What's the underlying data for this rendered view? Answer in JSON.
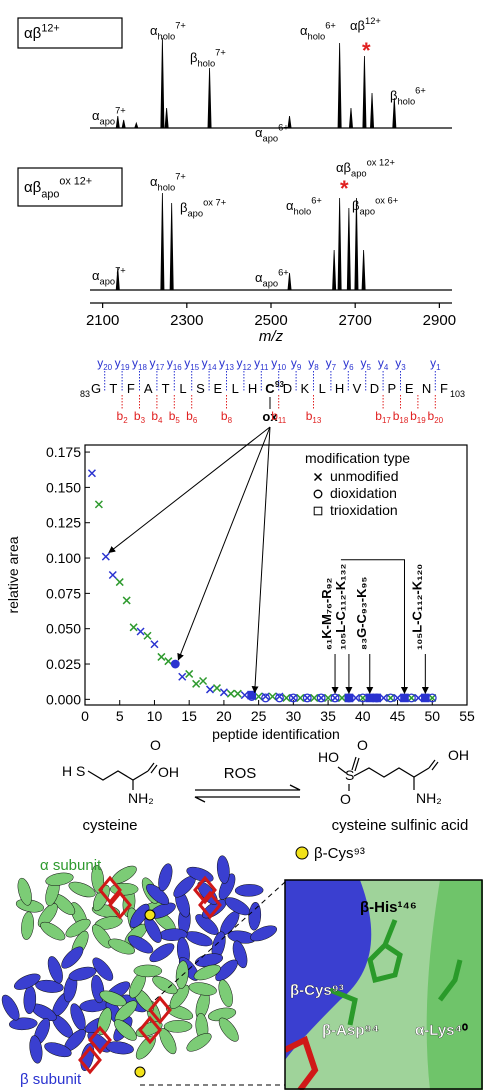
{
  "chart_data": [
    {
      "type": "spectrum",
      "label": {
        "base": "αβ",
        "sup": "12+"
      },
      "x": [
        2136,
        2150,
        2180,
        2242,
        2252,
        2354,
        2544,
        2663,
        2690,
        2722,
        2740,
        2793
      ],
      "values": [
        12,
        8,
        5,
        90,
        20,
        60,
        12,
        85,
        20,
        72,
        35,
        30
      ],
      "xlim": [
        2070,
        2930
      ],
      "annotations": [
        {
          "base": "α",
          "sub": "apo",
          "sup": "7+"
        },
        {
          "base": "α",
          "sub": "holo",
          "sup": "7+"
        },
        {
          "base": "β",
          "sub": "holo",
          "sup": "7+"
        },
        {
          "base": "α",
          "sub": "apo",
          "sup": "6+"
        },
        {
          "base": "α",
          "sub": "holo",
          "sup": "6+"
        },
        {
          "base": "αβ",
          "sup": "12+"
        },
        {
          "base": "β",
          "sub": "holo",
          "sup": "6+"
        }
      ],
      "marker": "*",
      "marker_color": "#e02020"
    },
    {
      "type": "spectrum",
      "label": {
        "base": "αβ",
        "sub": "apo",
        "sup": "ox 12+"
      },
      "x": [
        2136,
        2242,
        2264,
        2544,
        2650,
        2663,
        2685,
        2703,
        2720
      ],
      "values": [
        22,
        97,
        87,
        17,
        40,
        92,
        82,
        92,
        40
      ],
      "xlim": [
        2070,
        2930
      ],
      "xticks": [
        2100,
        2300,
        2500,
        2700,
        2900
      ],
      "xlabel": "m/z",
      "annotations": [
        {
          "base": "α",
          "sub": "apo",
          "sup": "7+"
        },
        {
          "base": "α",
          "sub": "holo",
          "sup": "7+"
        },
        {
          "base": "β",
          "sub": "apo",
          "sup": "ox 7+"
        },
        {
          "base": "α",
          "sub": "apo",
          "sup": "6+"
        },
        {
          "base": "α",
          "sub": "holo",
          "sup": "6+"
        },
        {
          "base": "αβ",
          "sub": "apo",
          "sup": "ox 12+"
        },
        {
          "base": "β",
          "sub": "apo",
          "sup": "ox 6+"
        }
      ],
      "marker": "*",
      "marker_color": "#e02020"
    },
    {
      "type": "scatter",
      "xlabel": "peptide identification",
      "ylabel": "relative area",
      "xlim": [
        0,
        55
      ],
      "xticks": [
        0,
        5,
        10,
        15,
        20,
        25,
        30,
        35,
        40,
        45,
        50,
        55
      ],
      "ylim": [
        -0.004,
        0.18
      ],
      "yticks": [
        {
          "value": 0,
          "label": "0.000"
        },
        {
          "value": 0.025,
          "label": "0.025"
        },
        {
          "value": 0.05,
          "label": "0.050"
        },
        {
          "value": 0.075,
          "label": "0.075"
        },
        {
          "value": 0.1,
          "label": "0.100"
        },
        {
          "value": 0.125,
          "label": "0.125"
        },
        {
          "value": 0.15,
          "label": "0.150"
        },
        {
          "value": 0.175,
          "label": "0.175"
        }
      ],
      "legend_title": "modification type",
      "legend": [
        {
          "name": "unmodified",
          "marker": "x"
        },
        {
          "name": "dioxidation",
          "marker": "circle"
        },
        {
          "name": "trioxidation",
          "marker": "square"
        }
      ],
      "series": [
        {
          "marker": "x",
          "color": "#2a33d0",
          "x": [
            1,
            3,
            4,
            8,
            10,
            14,
            18,
            20,
            23,
            26,
            28,
            30,
            32,
            34,
            36,
            39,
            43,
            45,
            48
          ],
          "values": [
            0.16,
            0.101,
            0.088,
            0.048,
            0.039,
            0.016,
            0.007,
            0.005,
            0.003,
            0.002,
            0.002,
            0.001,
            0.001,
            0.001,
            0.001,
            0.001,
            0.001,
            0.001,
            0.001
          ]
        },
        {
          "marker": "x",
          "color": "#2e9a2e",
          "x": [
            2,
            5,
            6,
            7,
            9,
            11,
            12,
            15,
            16,
            17,
            19,
            21,
            22,
            25,
            27,
            29,
            31,
            33,
            35,
            37,
            40,
            44,
            47,
            50
          ],
          "values": [
            0.138,
            0.083,
            0.07,
            0.051,
            0.045,
            0.03,
            0.027,
            0.018,
            0.011,
            0.013,
            0.008,
            0.004,
            0.004,
            0.002,
            0.002,
            0.001,
            0.001,
            0.001,
            0.001,
            0.001,
            0.001,
            0.001,
            0.001,
            0.001
          ]
        },
        {
          "marker": "circle",
          "filled": true,
          "color": "#2a33d0",
          "x": [
            13
          ],
          "values": [
            0.025
          ]
        },
        {
          "marker": "circle",
          "filled": false,
          "color": "#2a33d0",
          "x": [
            24,
            26,
            28,
            30,
            32,
            34,
            36,
            38,
            40,
            42,
            44,
            47,
            50
          ],
          "values": [
            0.002,
            0.001,
            0.001,
            0.001,
            0.001,
            0.001,
            0.001,
            0.001,
            0.001,
            0.001,
            0.001,
            0.001,
            0.001
          ]
        },
        {
          "marker": "square",
          "filled": true,
          "color": "#2a33d0",
          "x": [
            24,
            38,
            41,
            42,
            46,
            49
          ],
          "values": [
            0.003,
            0.001,
            0.001,
            0.001,
            0.001,
            0.001
          ]
        }
      ],
      "peptide_labels": [
        {
          "text": "₆₁K-M₇₆-R₉₂",
          "x": [
            36
          ]
        },
        {
          "text": "₁₀₅L-C₁₁₂-K₁₃₂",
          "x": [
            38,
            46
          ]
        },
        {
          "text": "₈₃G-C₉₃-K₉₅",
          "x": [
            41
          ]
        },
        {
          "text": "₁₀₅L-C₁₁₂-K₁₂₀",
          "x": [
            49
          ]
        }
      ],
      "ox_targets": [
        3,
        13,
        24
      ]
    }
  ],
  "sequence": {
    "start": "83",
    "end": "103",
    "residues": [
      "G",
      "T",
      "F",
      "A",
      "T",
      "L",
      "S",
      "E",
      "L",
      "H",
      "C",
      "D",
      "K",
      "L",
      "H",
      "V",
      "D",
      "P",
      "E",
      "N",
      "F"
    ],
    "site_number": "93",
    "ox": "ox",
    "y_ions": [
      {
        "ion": "y",
        "n": "20"
      },
      {
        "ion": "y",
        "n": "19"
      },
      {
        "ion": "y",
        "n": "18"
      },
      {
        "ion": "y",
        "n": "17"
      },
      {
        "ion": "y",
        "n": "16"
      },
      {
        "ion": "y",
        "n": "15"
      },
      {
        "ion": "y",
        "n": "14"
      },
      {
        "ion": "y",
        "n": "13"
      },
      {
        "ion": "y",
        "n": "12"
      },
      {
        "ion": "y",
        "n": "11"
      },
      {
        "ion": "y",
        "n": "10"
      },
      {
        "ion": "y",
        "n": "9"
      },
      {
        "ion": "y",
        "n": "8"
      },
      {
        "ion": "y",
        "n": "7"
      },
      {
        "ion": "y",
        "n": "6"
      },
      {
        "ion": "y",
        "n": "5"
      },
      {
        "ion": "y",
        "n": "4"
      },
      {
        "ion": "y",
        "n": "3"
      },
      {
        "ion": "y",
        "n": "1"
      }
    ],
    "b_ions": [
      {
        "ion": "b",
        "n": "2"
      },
      {
        "ion": "b",
        "n": "3"
      },
      {
        "ion": "b",
        "n": "4"
      },
      {
        "ion": "b",
        "n": "5"
      },
      {
        "ion": "b",
        "n": "6"
      },
      {
        "ion": "b",
        "n": "8"
      },
      {
        "ion": "b",
        "n": "11"
      },
      {
        "ion": "b",
        "n": "13"
      },
      {
        "ion": "b",
        "n": "17"
      },
      {
        "ion": "b",
        "n": "18"
      },
      {
        "ion": "b",
        "n": "19"
      },
      {
        "ion": "b",
        "n": "20"
      }
    ]
  },
  "reaction": {
    "left_atoms": [
      "H",
      "S",
      "O",
      "OH",
      "NH₂"
    ],
    "left_name": "cysteine",
    "arrow_label": "ROS",
    "right_atoms": [
      "HO",
      "S",
      "O",
      "O",
      "OH",
      "NH₂"
    ],
    "right_name": "cysteine sulfinic acid"
  },
  "structure": {
    "alpha_label": "α subunit",
    "beta_label": "β subunit",
    "key_label": "β-Cys⁹³",
    "inset_labels": [
      "β-His¹⁴⁶",
      "β-Cys⁹³",
      "β-Asp⁹⁴",
      "α-Lys⁴⁰"
    ]
  }
}
